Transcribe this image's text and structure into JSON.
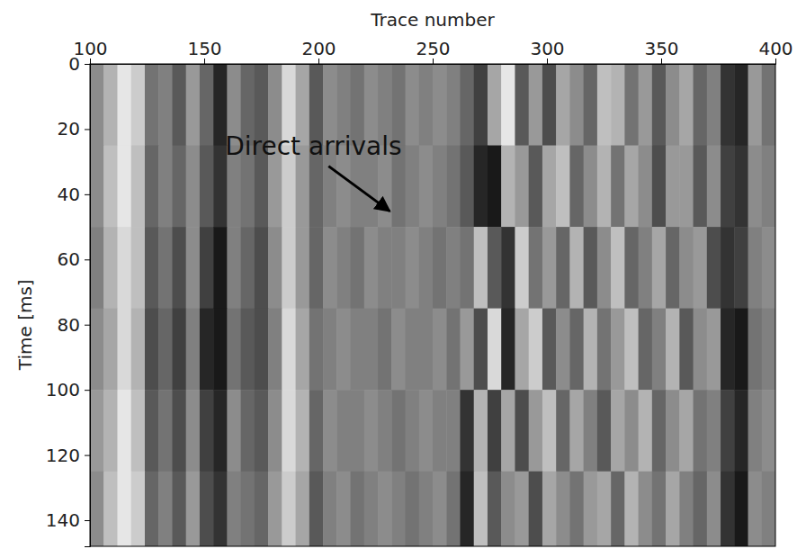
{
  "chart_data": {
    "type": "heatmap",
    "x_label": "Trace number",
    "y_label": "Time [ms]",
    "xlim": [
      100,
      400
    ],
    "ylim": [
      0,
      148
    ],
    "xticks": [
      100,
      150,
      200,
      250,
      300,
      350,
      400
    ],
    "yticks": [
      0,
      20,
      40,
      60,
      80,
      100,
      120,
      140
    ],
    "color": "gray",
    "color_range": [
      -1,
      1
    ],
    "x_edges": [
      100,
      106,
      112,
      118,
      124,
      130,
      136,
      142,
      148,
      154,
      160,
      166,
      172,
      178,
      184,
      190,
      196,
      202,
      208,
      214,
      220,
      226,
      232,
      238,
      244,
      250,
      256,
      262,
      268,
      274,
      280,
      286,
      292,
      298,
      304,
      310,
      316,
      322,
      328,
      334,
      340,
      346,
      352,
      358,
      364,
      370,
      376,
      382,
      388,
      394,
      400
    ],
    "y_edges": [
      0,
      25,
      50,
      75,
      100,
      125,
      148
    ],
    "cells": [
      [
        0.1,
        0.4,
        0.8,
        0.6,
        -0.1,
        0.0,
        -0.3,
        0.2,
        -0.2,
        -0.7,
        0.1,
        -0.2,
        -0.3,
        0.1,
        0.7,
        0.3,
        -0.3,
        0.1,
        0.0,
        -0.1,
        0.1,
        0.0,
        -0.1,
        0.1,
        0.0,
        0.1,
        0.0,
        -0.2,
        -0.5,
        0.3,
        0.8,
        -0.3,
        0.2,
        -0.4,
        0.3,
        0.1,
        -0.2,
        0.5,
        0.4,
        -0.1,
        0.2,
        -0.3,
        0.1,
        0.3,
        -0.2,
        0.0,
        -0.6,
        -0.7,
        0.2,
        -0.1
      ],
      [
        0.1,
        0.5,
        0.8,
        0.5,
        -0.2,
        0.0,
        -0.2,
        0.1,
        -0.3,
        -0.6,
        0.0,
        -0.1,
        -0.3,
        0.2,
        0.6,
        0.2,
        -0.2,
        0.0,
        0.1,
        0.0,
        0.0,
        0.1,
        -0.1,
        0.0,
        0.1,
        0.0,
        -0.1,
        -0.3,
        -0.7,
        -0.8,
        0.4,
        0.2,
        -0.3,
        0.3,
        0.5,
        -0.2,
        0.1,
        0.4,
        -0.1,
        0.3,
        0.1,
        -0.4,
        0.2,
        0.2,
        -0.3,
        0.1,
        -0.5,
        -0.6,
        0.1,
        0.0
      ],
      [
        0.0,
        0.4,
        0.7,
        0.5,
        -0.3,
        -0.1,
        -0.4,
        0.1,
        -0.5,
        -0.8,
        0.0,
        -0.2,
        -0.4,
        0.1,
        0.6,
        0.2,
        -0.2,
        0.1,
        0.0,
        -0.1,
        0.1,
        0.0,
        0.0,
        0.1,
        0.0,
        -0.1,
        0.0,
        -0.1,
        0.5,
        -0.3,
        -0.6,
        0.6,
        -0.1,
        0.2,
        -0.2,
        0.4,
        -0.3,
        0.1,
        0.5,
        -0.2,
        0.0,
        0.3,
        -0.2,
        0.1,
        0.2,
        -0.4,
        -0.6,
        -0.5,
        0.0,
        0.1
      ],
      [
        0.1,
        0.3,
        0.7,
        0.4,
        -0.4,
        -0.2,
        -0.5,
        0.0,
        -0.7,
        -0.8,
        -0.1,
        -0.3,
        -0.4,
        0.0,
        0.7,
        0.3,
        -0.1,
        0.0,
        0.1,
        0.0,
        0.0,
        -0.1,
        0.1,
        0.0,
        0.0,
        0.1,
        -0.1,
        0.2,
        -0.4,
        0.7,
        -0.7,
        0.3,
        0.6,
        -0.3,
        0.1,
        -0.2,
        0.4,
        -0.1,
        0.2,
        0.5,
        -0.2,
        0.0,
        0.4,
        -0.3,
        0.1,
        0.2,
        -0.7,
        -0.8,
        -0.1,
        0.0
      ],
      [
        0.2,
        0.4,
        0.8,
        0.5,
        -0.3,
        -0.1,
        -0.4,
        0.1,
        -0.5,
        -0.7,
        0.1,
        -0.2,
        -0.3,
        0.1,
        0.7,
        0.4,
        -0.2,
        0.1,
        0.0,
        0.0,
        0.1,
        0.0,
        -0.1,
        0.0,
        0.1,
        0.0,
        0.0,
        -0.6,
        0.4,
        -0.5,
        0.3,
        -0.4,
        0.2,
        0.5,
        -0.2,
        0.3,
        0.0,
        -0.3,
        0.3,
        0.1,
        0.4,
        -0.2,
        0.1,
        0.3,
        -0.1,
        0.0,
        -0.5,
        -0.7,
        0.0,
        0.1
      ],
      [
        0.1,
        0.5,
        0.8,
        0.6,
        -0.2,
        0.0,
        -0.3,
        0.2,
        -0.4,
        -0.6,
        0.0,
        -0.1,
        -0.2,
        0.2,
        0.6,
        0.3,
        -0.3,
        0.0,
        0.1,
        -0.1,
        0.0,
        0.1,
        0.0,
        -0.1,
        0.0,
        0.1,
        -0.1,
        -0.7,
        0.5,
        -0.3,
        0.1,
        0.2,
        -0.4,
        0.3,
        0.1,
        -0.1,
        0.2,
        0.3,
        -0.2,
        0.4,
        0.1,
        -0.1,
        0.3,
        0.0,
        -0.2,
        0.1,
        -0.6,
        -0.8,
        0.1,
        0.0
      ]
    ],
    "annotations": [
      {
        "text": "Direct arrivals",
        "x": 232,
        "y": 46
      }
    ]
  }
}
